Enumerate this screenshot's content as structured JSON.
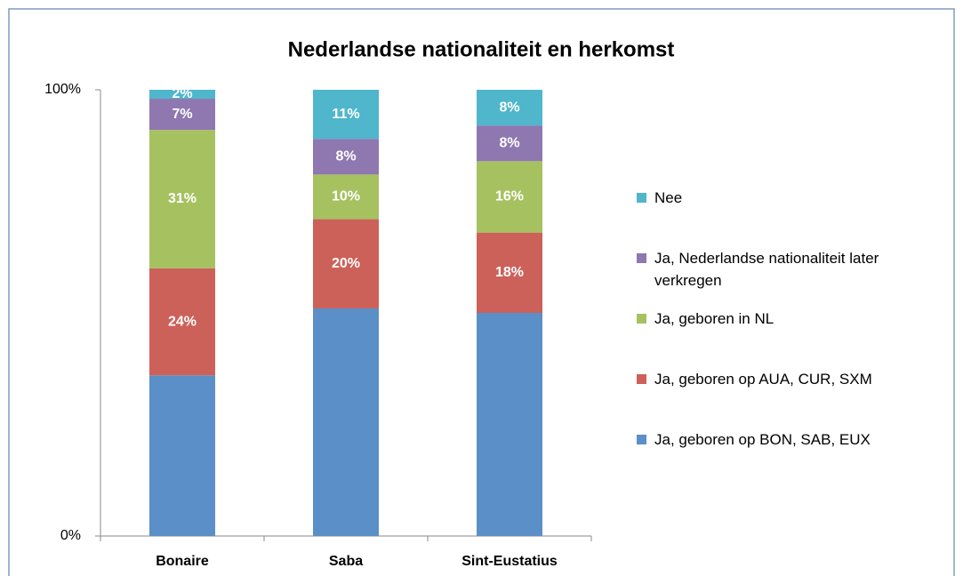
{
  "chart_data": {
    "type": "stacked_bar",
    "title": "Nederlandse nationaliteit en herkomst",
    "categories": [
      "Bonaire",
      "Saba",
      "Sint-Eustatius"
    ],
    "series": [
      {
        "name": "Ja, geboren op BON, SAB, EUX",
        "color": "#5b8fc7",
        "values": [
          36,
          51,
          50
        ]
      },
      {
        "name": "Ja, geboren op AUA, CUR, SXM",
        "color": "#cc6159",
        "values": [
          24,
          20,
          18
        ],
        "value_labels": [
          "24%",
          "20%",
          "18%"
        ]
      },
      {
        "name": "Ja, geboren in NL",
        "color": "#a6c160",
        "values": [
          31,
          10,
          16
        ],
        "value_labels": [
          "31%",
          "10%",
          "16%"
        ]
      },
      {
        "name": "Ja, Nederlandse nationaliteit later verkregen",
        "color": "#8f77b0",
        "values": [
          7,
          8,
          8
        ],
        "value_labels": [
          "7%",
          "8%",
          "8%"
        ]
      },
      {
        "name": "Nee",
        "color": "#4fb6cb",
        "values": [
          2,
          11,
          8
        ],
        "value_labels": [
          "2%",
          "11%",
          "8%"
        ]
      }
    ],
    "ylim": [
      0,
      100
    ],
    "yticks": [
      {
        "value": 0,
        "label": "0%"
      },
      {
        "value": 100,
        "label": "100%"
      }
    ],
    "legend": "right"
  }
}
